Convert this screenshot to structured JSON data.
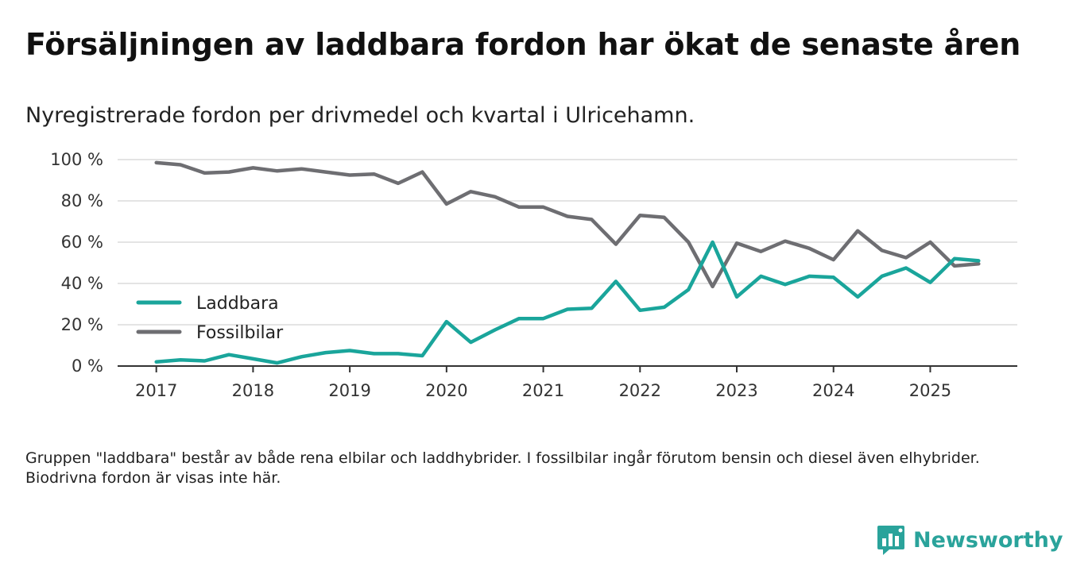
{
  "header": {
    "title": "Försäljningen av laddbara fordon har ökat de senaste åren",
    "subtitle": "Nyregistrerade fordon per drivmedel och kvartal i Ulricehamn."
  },
  "chart_data": {
    "type": "line",
    "title": "Försäljningen av laddbara fordon har ökat de senaste åren",
    "subtitle": "Nyregistrerade fordon per drivmedel och kvartal i Ulricehamn.",
    "xlabel": "",
    "ylabel": "",
    "x": [
      2017.0,
      2017.25,
      2017.5,
      2017.75,
      2018.0,
      2018.25,
      2018.5,
      2018.75,
      2019.0,
      2019.25,
      2019.5,
      2019.75,
      2020.0,
      2020.25,
      2020.5,
      2020.75,
      2021.0,
      2021.25,
      2021.5,
      2021.75,
      2022.0,
      2022.25,
      2022.5,
      2022.75,
      2023.0,
      2023.25,
      2023.5,
      2023.75,
      2024.0,
      2024.25,
      2024.5,
      2024.75,
      2025.0,
      2025.25,
      2025.5
    ],
    "xlim": [
      2016.6,
      2025.9
    ],
    "ylim": [
      0,
      100
    ],
    "x_ticks": [
      2017,
      2018,
      2019,
      2020,
      2021,
      2022,
      2023,
      2024,
      2025
    ],
    "x_tick_labels": [
      "2017",
      "2018",
      "2019",
      "2020",
      "2021",
      "2022",
      "2023",
      "2024",
      "2025"
    ],
    "y_ticks": [
      0,
      20,
      40,
      60,
      80,
      100
    ],
    "y_tick_labels": [
      "0 %",
      "20 %",
      "40 %",
      "60 %",
      "80 %",
      "100 %"
    ],
    "grid": true,
    "legend_position": "bottom-left",
    "series": [
      {
        "name": "Laddbara",
        "color": "#1aa59b",
        "values": [
          2,
          3,
          2.5,
          5.5,
          3.5,
          1.5,
          4.5,
          6.5,
          7.5,
          6,
          6,
          5,
          21.5,
          11.5,
          17.5,
          23,
          23,
          27.5,
          28,
          41,
          27,
          28.5,
          37,
          60,
          33.5,
          43.5,
          39.5,
          43.5,
          43,
          33.5,
          43.5,
          47.5,
          40.5,
          52,
          51
        ]
      },
      {
        "name": "Fossilbilar",
        "color": "#6e6e72",
        "values": [
          98.5,
          97.5,
          93.5,
          94,
          96,
          94.5,
          95.5,
          94,
          92.5,
          93,
          88.5,
          94,
          78.5,
          84.5,
          82,
          77,
          77,
          72.5,
          71,
          59,
          73,
          72,
          60,
          38.5,
          59.5,
          55.5,
          60.5,
          57,
          51.5,
          65.5,
          56,
          52.5,
          60,
          48.5,
          49.5
        ]
      }
    ],
    "footnote": "Gruppen \"laddbara\" består av både rena elbilar och laddhybrider. I fossilbilar ingår förutom bensin och diesel även elhybrider. Biodrivna fordon är visas inte här."
  },
  "footer": {
    "note": "Gruppen \"laddbara\" består av både rena elbilar och laddhybrider. I fossilbilar ingår förutom bensin och diesel även elhybrider. Biodrivna fordon är visas inte här.",
    "brand": "Newsworthy",
    "brand_color": "#2aa39b",
    "logo_icon": "bar-chart-speech-bubble-icon"
  }
}
